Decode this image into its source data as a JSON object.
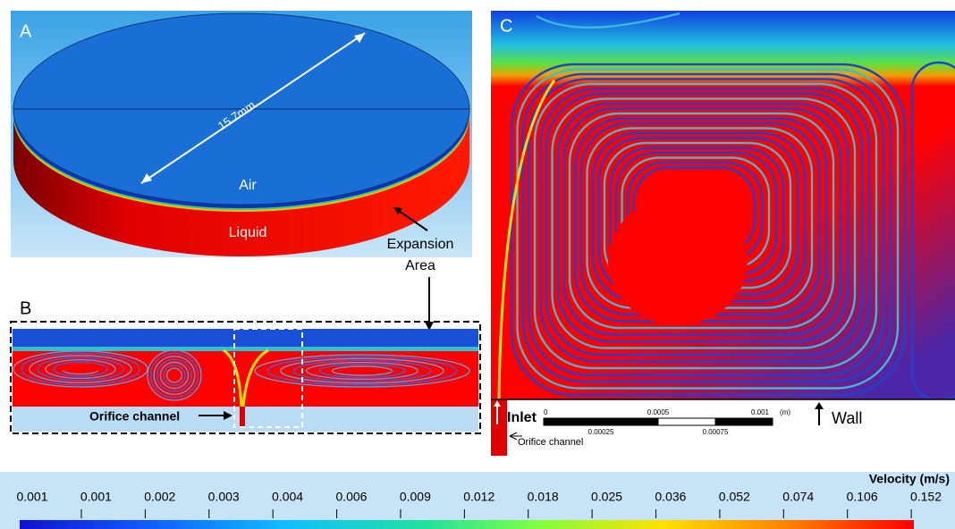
{
  "panel_a": {
    "label": "A",
    "dimension": "15.7mm",
    "air": "Air",
    "liquid": "Liquid",
    "annotation": [
      "Expansion",
      "Area"
    ]
  },
  "panel_b": {
    "label": "B",
    "annotation": "Orifice channel"
  },
  "panel_c": {
    "label": "C",
    "inlet": "Inlet",
    "orifice": "Orifice channel",
    "wall": "Wall",
    "scale_top": [
      "0",
      "0.0005",
      "0.001"
    ],
    "scale_unit": "(m)",
    "scale_bottom": [
      "0.00025",
      "0.00075"
    ]
  },
  "colorbar": {
    "title": "Velocity  (m/s)",
    "ticks": [
      "0.001",
      "0.001",
      "0.002",
      "0.003",
      "0.004",
      "0.006",
      "0.009",
      "0.012",
      "0.018",
      "0.025",
      "0.036",
      "0.052",
      "0.074",
      "0.106",
      "0.152"
    ]
  }
}
